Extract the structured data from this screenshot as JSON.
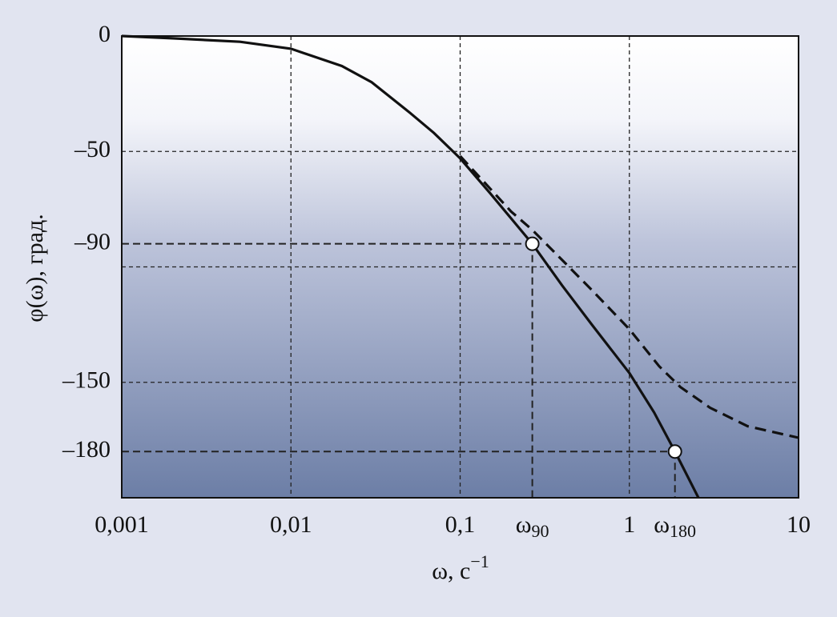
{
  "chart_data": {
    "type": "line",
    "x_label": "ω, с",
    "x_label_sup": "−1",
    "y_label": "φ(ω), град.",
    "x_log": true,
    "xlim": [
      0.001,
      10
    ],
    "xticks": [
      {
        "value": 0.001,
        "label": "0,001"
      },
      {
        "value": 0.01,
        "label": "0,01"
      },
      {
        "value": 0.1,
        "label": "0,1"
      },
      1,
      10
    ],
    "ylim": [
      -200,
      0
    ],
    "yticks": [
      0,
      {
        "value": -50,
        "label": "–50"
      },
      {
        "value": -90,
        "label": "–90"
      },
      {
        "value": -100,
        "label": null
      },
      {
        "value": -150,
        "label": "–150"
      },
      {
        "value": -180,
        "label": "–180"
      }
    ],
    "grid": true,
    "series": [
      {
        "name": null,
        "style": "solid",
        "color": "#111111",
        "x": [
          0.001,
          0.002,
          0.005,
          0.01,
          0.02,
          0.03,
          0.05,
          0.07,
          0.1,
          0.15,
          0.2,
          0.267,
          0.4,
          0.6,
          1,
          1.4,
          1.86,
          2.56
        ],
        "values": [
          0,
          -1,
          -2.5,
          -5.5,
          -13,
          -20,
          -33,
          -42,
          -53,
          -68,
          -79,
          -90,
          -108,
          -125,
          -146,
          -163,
          -180,
          -200
        ]
      },
      {
        "name": null,
        "style": "dashed",
        "color": "#111111",
        "x": [
          0.1,
          0.15,
          0.2,
          0.267,
          0.4,
          0.6,
          1,
          1.5,
          2,
          3,
          5,
          10
        ],
        "values": [
          -52,
          -66,
          -76,
          -84,
          -97,
          -110,
          -127,
          -143,
          -152,
          -161,
          -169,
          -174
        ]
      }
    ],
    "points": [
      {
        "x": 0.267,
        "y": -90,
        "label": "ω",
        "subscript": "90"
      },
      {
        "x": 1.86,
        "y": -180,
        "label": "ω",
        "subscript": "180"
      }
    ]
  }
}
